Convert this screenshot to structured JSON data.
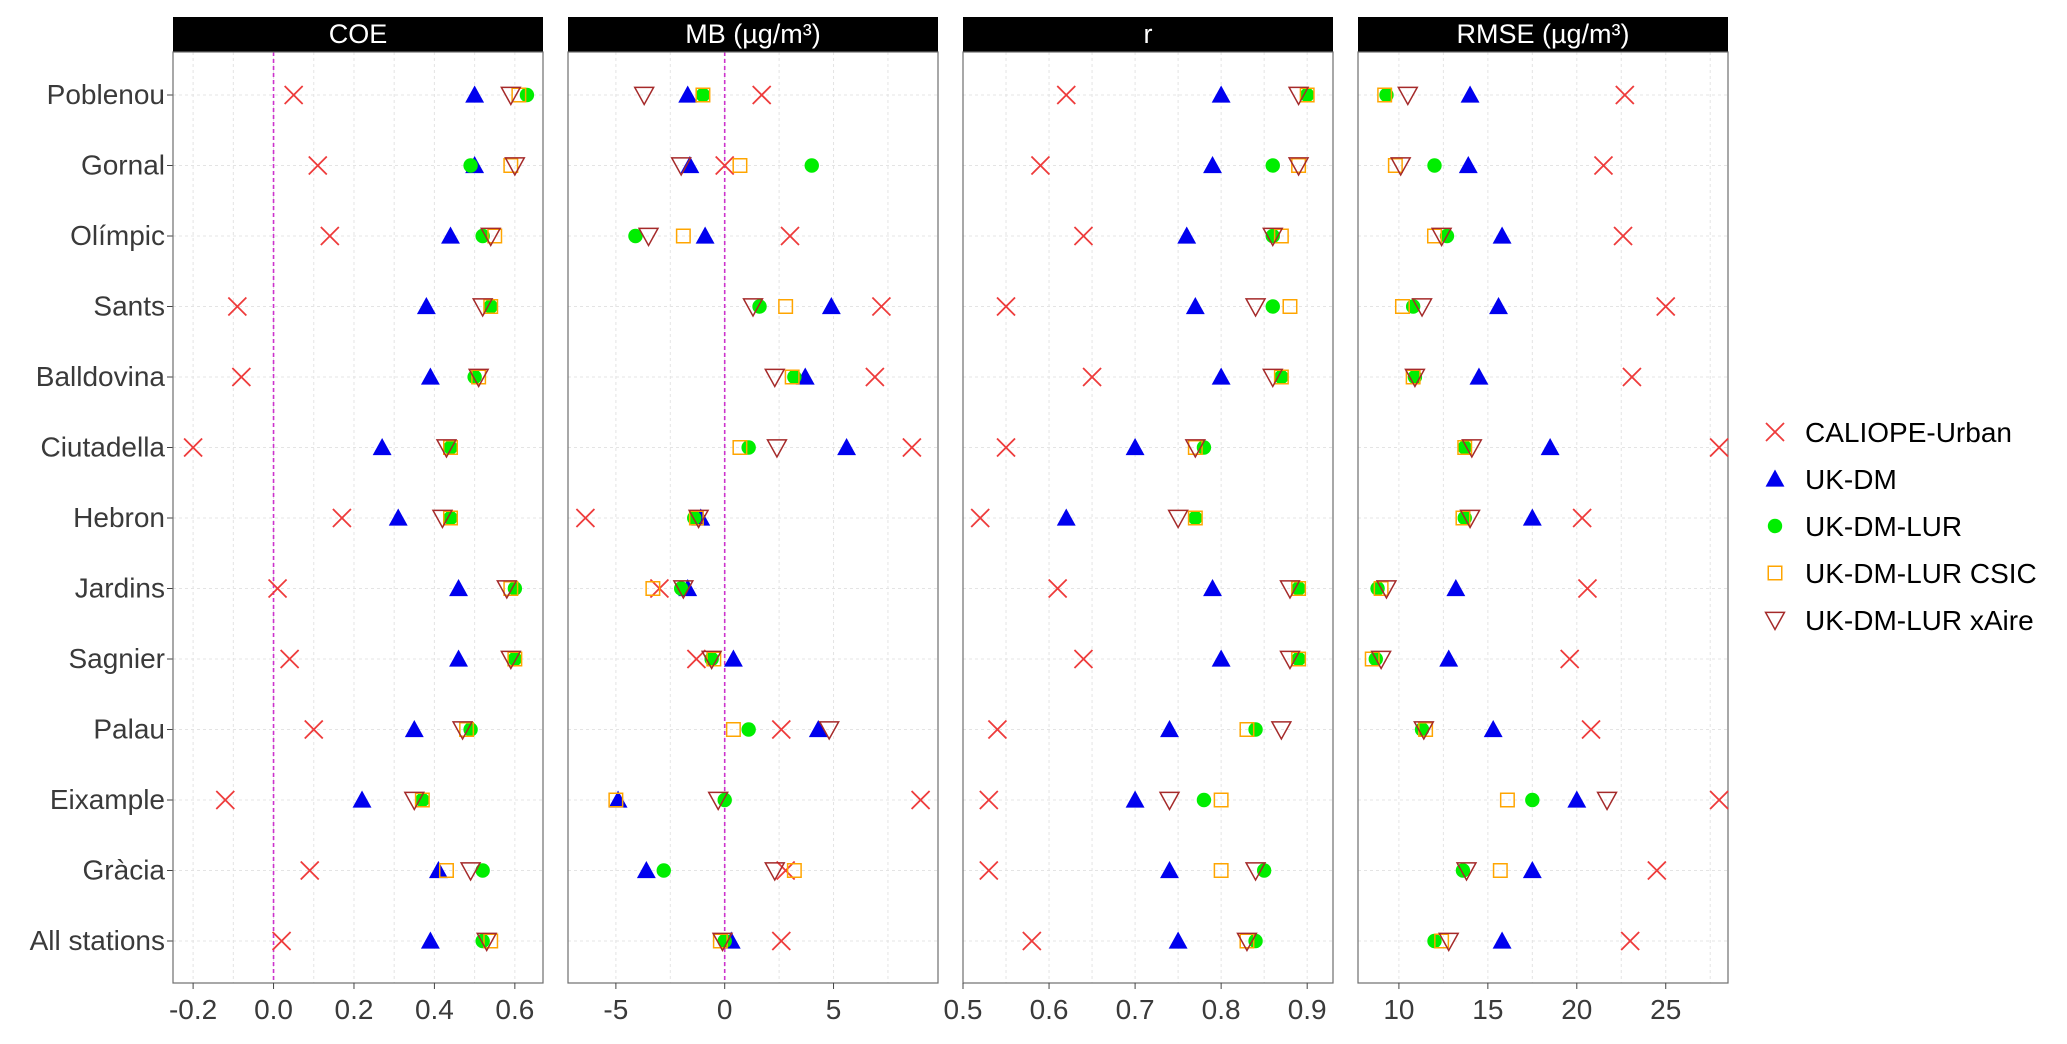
{
  "chart_data": {
    "type": "scatter",
    "layout": "faceted-dot-plot",
    "stations": [
      "Poblenou",
      "Gornal",
      "Olímpic",
      "Sants",
      "Balldovina",
      "Ciutadella",
      "Hebron",
      "Jardins",
      "Sagnier",
      "Palau",
      "Eixample",
      "Gràcia",
      "All stations"
    ],
    "legend": {
      "position": "right",
      "entries": [
        {
          "name": "CALIOPE-Urban",
          "marker": "cross",
          "color": "#ee3b3b"
        },
        {
          "name": "UK-DM",
          "marker": "triangle",
          "color": "#0000ee"
        },
        {
          "name": "UK-DM-LUR",
          "marker": "circle",
          "color": "#00ee00"
        },
        {
          "name": "UK-DM-LUR CSIC",
          "marker": "square",
          "color": "#ffa500"
        },
        {
          "name": "UK-DM-LUR xAire",
          "marker": "triangle-down",
          "color": "#a52a2a"
        }
      ]
    },
    "panels": [
      {
        "title": "COE",
        "xlim": [
          -0.25,
          0.67
        ],
        "ticks": [
          -0.2,
          0.0,
          0.2,
          0.4,
          0.6
        ],
        "tick_labels": [
          "-0.2",
          "0.0",
          "0.2",
          "0.4",
          "0.6"
        ],
        "ref_line": 0,
        "series": [
          {
            "name": "CALIOPE-Urban",
            "values": [
              0.05,
              0.11,
              0.14,
              -0.09,
              -0.08,
              -0.2,
              0.17,
              0.01,
              0.04,
              0.1,
              -0.12,
              0.09,
              0.02
            ]
          },
          {
            "name": "UK-DM",
            "values": [
              0.5,
              0.5,
              0.44,
              0.38,
              0.39,
              0.27,
              0.31,
              0.46,
              0.46,
              0.35,
              0.22,
              0.41,
              0.39
            ]
          },
          {
            "name": "UK-DM-LUR",
            "values": [
              0.63,
              0.49,
              0.52,
              0.54,
              0.5,
              0.44,
              0.44,
              0.6,
              0.6,
              0.49,
              0.37,
              0.52,
              0.52
            ]
          },
          {
            "name": "UK-DM-LUR CSIC",
            "values": [
              0.61,
              0.59,
              0.55,
              0.54,
              0.51,
              0.44,
              0.44,
              0.59,
              0.6,
              0.48,
              0.37,
              0.43,
              0.54
            ]
          },
          {
            "name": "UK-DM-LUR xAire",
            "values": [
              0.59,
              0.6,
              0.54,
              0.52,
              0.51,
              0.43,
              0.42,
              0.58,
              0.59,
              0.47,
              0.35,
              0.49,
              0.53
            ]
          }
        ]
      },
      {
        "title": "MB (µg/m³)",
        "xlim": [
          -7.2,
          9.8
        ],
        "ticks": [
          -5,
          0,
          5
        ],
        "tick_labels": [
          "-5",
          "0",
          "5"
        ],
        "ref_line": 0,
        "series": [
          {
            "name": "CALIOPE-Urban",
            "values": [
              1.7,
              0.0,
              3.0,
              7.2,
              6.9,
              8.6,
              -6.4,
              -3.0,
              -1.3,
              2.6,
              9.0,
              2.8,
              2.6
            ]
          },
          {
            "name": "UK-DM",
            "values": [
              -1.7,
              -1.6,
              -0.9,
              4.9,
              3.7,
              5.6,
              -1.1,
              -1.7,
              0.4,
              4.3,
              -4.9,
              -3.6,
              0.3
            ]
          },
          {
            "name": "UK-DM-LUR",
            "values": [
              -1.0,
              4.0,
              -4.1,
              1.6,
              3.2,
              1.1,
              -1.4,
              -2.0,
              -0.6,
              1.1,
              0.0,
              -2.8,
              0.0
            ]
          },
          {
            "name": "UK-DM-LUR CSIC",
            "values": [
              -1.0,
              0.7,
              -1.9,
              2.8,
              3.1,
              0.7,
              -1.3,
              -3.3,
              -0.5,
              0.4,
              -5.0,
              3.2,
              -0.2
            ]
          },
          {
            "name": "UK-DM-LUR xAire",
            "values": [
              -3.7,
              -2.0,
              -3.5,
              1.3,
              2.3,
              2.4,
              -1.2,
              -1.9,
              -0.6,
              4.8,
              -0.3,
              2.3,
              -0.1
            ]
          }
        ]
      },
      {
        "title": "r",
        "xlim": [
          0.5,
          0.93
        ],
        "ticks": [
          0.5,
          0.6,
          0.7,
          0.8,
          0.9
        ],
        "tick_labels": [
          "0.5",
          "0.6",
          "0.7",
          "0.8",
          "0.9"
        ],
        "series": [
          {
            "name": "CALIOPE-Urban",
            "values": [
              0.62,
              0.59,
              0.64,
              0.55,
              0.65,
              0.55,
              0.52,
              0.61,
              0.64,
              0.54,
              0.53,
              0.53,
              0.58
            ]
          },
          {
            "name": "UK-DM",
            "values": [
              0.8,
              0.79,
              0.76,
              0.77,
              0.8,
              0.7,
              0.62,
              0.79,
              0.8,
              0.74,
              0.7,
              0.74,
              0.75
            ]
          },
          {
            "name": "UK-DM-LUR",
            "values": [
              0.9,
              0.86,
              0.86,
              0.86,
              0.87,
              0.78,
              0.77,
              0.89,
              0.89,
              0.84,
              0.78,
              0.85,
              0.84
            ]
          },
          {
            "name": "UK-DM-LUR CSIC",
            "values": [
              0.9,
              0.89,
              0.87,
              0.88,
              0.87,
              0.77,
              0.77,
              0.89,
              0.89,
              0.83,
              0.8,
              0.8,
              0.83
            ]
          },
          {
            "name": "UK-DM-LUR xAire",
            "values": [
              0.89,
              0.89,
              0.86,
              0.84,
              0.86,
              0.77,
              0.75,
              0.88,
              0.88,
              0.87,
              0.74,
              0.84,
              0.83
            ]
          }
        ]
      },
      {
        "title": "RMSE (µg/m³)",
        "xlim": [
          7.7,
          28.5
        ],
        "ticks": [
          10,
          15,
          20,
          25
        ],
        "tick_labels": [
          "10",
          "15",
          "20",
          "25"
        ],
        "series": [
          {
            "name": "CALIOPE-Urban",
            "values": [
              22.7,
              21.5,
              22.6,
              25.0,
              23.1,
              28.0,
              20.3,
              20.6,
              19.6,
              20.8,
              28.0,
              24.5,
              23.0
            ]
          },
          {
            "name": "UK-DM",
            "values": [
              14.0,
              13.9,
              15.8,
              15.6,
              14.5,
              18.5,
              17.5,
              13.2,
              12.8,
              15.3,
              20.0,
              17.5,
              15.8
            ]
          },
          {
            "name": "UK-DM-LUR",
            "values": [
              9.3,
              12.0,
              12.7,
              10.8,
              10.9,
              13.7,
              13.7,
              8.8,
              8.7,
              11.3,
              17.5,
              13.6,
              12.0
            ]
          },
          {
            "name": "UK-DM-LUR CSIC",
            "values": [
              9.2,
              9.8,
              12.0,
              10.2,
              10.8,
              13.7,
              13.6,
              9.0,
              8.5,
              11.5,
              16.1,
              15.7,
              12.4
            ]
          },
          {
            "name": "UK-DM-LUR xAire",
            "values": [
              10.5,
              10.1,
              12.4,
              11.3,
              10.9,
              14.1,
              14.0,
              9.3,
              9.0,
              11.4,
              21.7,
              13.8,
              12.8
            ]
          }
        ]
      }
    ]
  }
}
